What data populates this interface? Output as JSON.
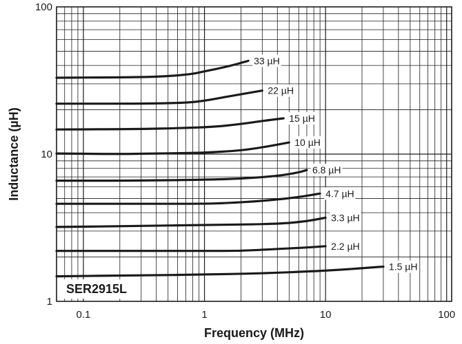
{
  "chart_data": {
    "type": "line",
    "title": "",
    "part_label": "SER2915L",
    "xlabel": "Frequency (MHz)",
    "ylabel": "Inductance (µH)",
    "x_scale": "log",
    "y_scale": "log",
    "xlim": [
      0.06,
      110
    ],
    "ylim": [
      1,
      100
    ],
    "x_ticks": [
      0.1,
      1,
      10,
      100
    ],
    "x_tick_labels": [
      "0.1",
      "1",
      "10",
      "100"
    ],
    "y_ticks": [
      1,
      10,
      100
    ],
    "y_tick_labels": [
      "1",
      "10",
      "100"
    ],
    "grid": true,
    "legend": "inline labels at curve ends",
    "series": [
      {
        "name": "33 µH",
        "x": [
          0.06,
          0.3,
          0.5,
          0.8,
          1.0,
          1.5,
          2.3
        ],
        "y": [
          33.0,
          33.3,
          33.8,
          35.0,
          36.5,
          39.0,
          43.0
        ]
      },
      {
        "name": "22 µH",
        "x": [
          0.06,
          0.3,
          0.7,
          1.0,
          1.5,
          2.0,
          3.0
        ],
        "y": [
          22.0,
          22.0,
          22.3,
          23.0,
          24.5,
          25.5,
          27.0
        ]
      },
      {
        "name": "15 µH",
        "x": [
          0.06,
          0.3,
          0.6,
          1.2,
          2.0,
          3.0,
          4.5
        ],
        "y": [
          14.7,
          14.8,
          15.0,
          15.3,
          16.0,
          16.8,
          17.5
        ]
      },
      {
        "name": "10 µH",
        "x": [
          0.06,
          0.2,
          0.4,
          1.0,
          2.0,
          3.0,
          5.0
        ],
        "y": [
          10.1,
          10.0,
          10.1,
          10.2,
          10.6,
          11.1,
          12.0
        ]
      },
      {
        "name": "6.8 µH",
        "x": [
          0.06,
          0.3,
          1.0,
          2.0,
          4.0,
          6.0,
          7.0
        ],
        "y": [
          6.6,
          6.6,
          6.7,
          6.8,
          7.1,
          7.5,
          7.8
        ]
      },
      {
        "name": "4.7 µH",
        "x": [
          0.06,
          0.3,
          1.0,
          1.5,
          3.0,
          6.0,
          9.0
        ],
        "y": [
          4.6,
          4.6,
          4.6,
          4.65,
          4.8,
          5.1,
          5.4
        ]
      },
      {
        "name": "3.3 µH",
        "x": [
          0.06,
          0.3,
          1.0,
          4.0,
          7.0,
          10.0
        ],
        "y": [
          3.2,
          3.25,
          3.3,
          3.35,
          3.5,
          3.7
        ]
      },
      {
        "name": "2.2 µH",
        "x": [
          0.06,
          0.3,
          1.0,
          2.0,
          4.0,
          7.0,
          10.0
        ],
        "y": [
          2.2,
          2.2,
          2.2,
          2.2,
          2.27,
          2.32,
          2.37
        ]
      },
      {
        "name": "1.5 µH",
        "x": [
          0.06,
          0.3,
          1.0,
          3.0,
          8.0,
          15.0,
          30.0
        ],
        "y": [
          1.48,
          1.5,
          1.52,
          1.55,
          1.6,
          1.65,
          1.72
        ]
      }
    ]
  }
}
